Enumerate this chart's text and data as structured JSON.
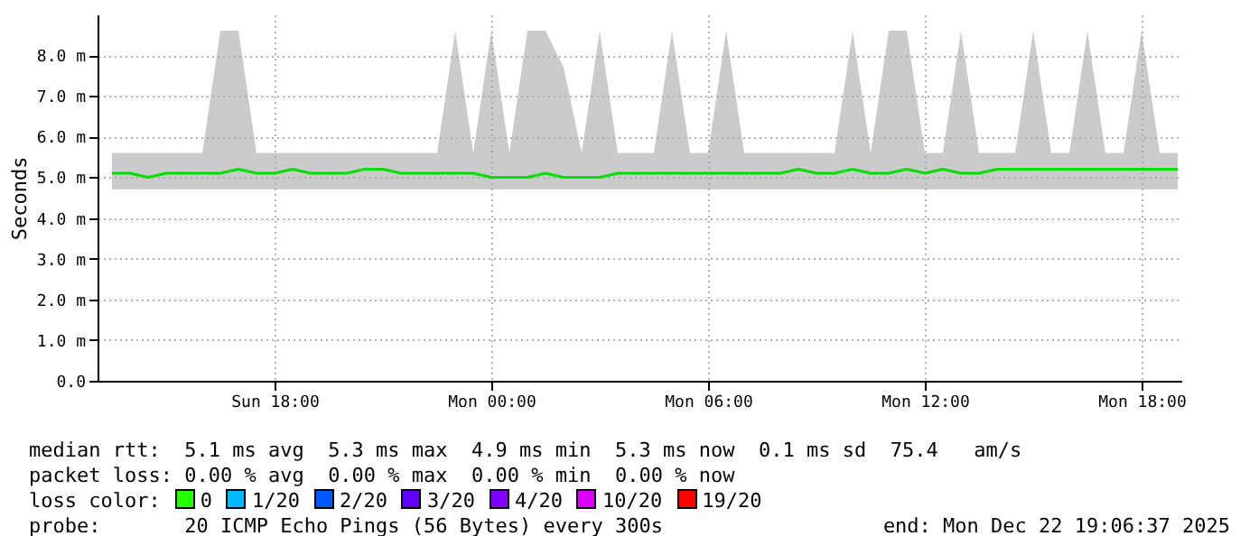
{
  "chart_data": {
    "type": "line",
    "ylabel": "Seconds",
    "x": [
      "2025-12-21T13:30",
      "2025-12-21T14:00",
      "2025-12-21T14:30",
      "2025-12-21T15:00",
      "2025-12-21T15:30",
      "2025-12-21T16:00",
      "2025-12-21T16:30",
      "2025-12-21T17:00",
      "2025-12-21T17:30",
      "2025-12-21T18:00",
      "2025-12-21T18:30",
      "2025-12-21T19:00",
      "2025-12-21T19:30",
      "2025-12-21T20:00",
      "2025-12-21T20:30",
      "2025-12-21T21:00",
      "2025-12-21T21:30",
      "2025-12-21T22:00",
      "2025-12-21T22:30",
      "2025-12-21T23:00",
      "2025-12-21T23:30",
      "2025-12-22T00:00",
      "2025-12-22T00:30",
      "2025-12-22T01:00",
      "2025-12-22T01:30",
      "2025-12-22T02:00",
      "2025-12-22T02:30",
      "2025-12-22T03:00",
      "2025-12-22T03:30",
      "2025-12-22T04:00",
      "2025-12-22T04:30",
      "2025-12-22T05:00",
      "2025-12-22T05:30",
      "2025-12-22T06:00",
      "2025-12-22T06:30",
      "2025-12-22T07:00",
      "2025-12-22T07:30",
      "2025-12-22T08:00",
      "2025-12-22T08:30",
      "2025-12-22T09:00",
      "2025-12-22T09:30",
      "2025-12-22T10:00",
      "2025-12-22T10:30",
      "2025-12-22T11:00",
      "2025-12-22T11:30",
      "2025-12-22T12:00",
      "2025-12-22T12:30",
      "2025-12-22T13:00",
      "2025-12-22T13:30",
      "2025-12-22T14:00",
      "2025-12-22T14:30",
      "2025-12-22T15:00",
      "2025-12-22T15:30",
      "2025-12-22T16:00",
      "2025-12-22T16:30",
      "2025-12-22T17:00",
      "2025-12-22T17:30",
      "2025-12-22T18:00",
      "2025-12-22T18:30",
      "2025-12-22T19:00"
    ],
    "series": [
      {
        "color": "#00e000",
        "values": [
          5.1,
          5.1,
          5.0,
          5.1,
          5.1,
          5.1,
          5.1,
          5.2,
          5.1,
          5.1,
          5.2,
          5.1,
          5.1,
          5.1,
          5.2,
          5.2,
          5.1,
          5.1,
          5.1,
          5.1,
          5.1,
          5.0,
          5.0,
          5.0,
          5.1,
          5.0,
          5.0,
          5.0,
          5.1,
          5.1,
          5.1,
          5.1,
          5.1,
          5.1,
          5.1,
          5.1,
          5.1,
          5.1,
          5.2,
          5.1,
          5.1,
          5.2,
          5.1,
          5.1,
          5.2,
          5.1,
          5.2,
          5.1,
          5.1,
          5.2,
          5.2,
          5.2,
          5.2,
          5.2,
          5.2,
          5.2,
          5.2,
          5.2,
          5.2,
          5.2
        ],
        "lower": [
          4.7,
          4.7,
          4.7,
          4.7,
          4.7,
          4.7,
          4.7,
          4.7,
          4.7,
          4.7,
          4.7,
          4.7,
          4.7,
          4.7,
          4.7,
          4.7,
          4.7,
          4.7,
          4.7,
          4.7,
          4.7,
          4.7,
          4.7,
          4.7,
          4.7,
          4.7,
          4.7,
          4.7,
          4.7,
          4.7,
          4.7,
          4.7,
          4.7,
          4.7,
          4.7,
          4.7,
          4.7,
          4.7,
          4.7,
          4.7,
          4.7,
          4.7,
          4.7,
          4.7,
          4.7,
          4.7,
          4.7,
          4.7,
          4.7,
          4.7,
          4.7,
          4.7,
          4.7,
          4.7,
          4.7,
          4.7,
          4.7,
          4.7,
          4.7,
          4.7
        ],
        "upper": [
          5.6,
          5.6,
          5.6,
          5.6,
          5.6,
          5.6,
          8.6,
          8.6,
          5.6,
          5.6,
          5.6,
          5.6,
          5.6,
          5.6,
          5.6,
          5.6,
          5.6,
          5.6,
          5.6,
          8.6,
          5.6,
          8.6,
          5.6,
          8.6,
          8.6,
          7.7,
          5.6,
          8.6,
          5.6,
          5.6,
          5.6,
          8.6,
          5.6,
          5.6,
          8.6,
          5.6,
          5.6,
          5.6,
          5.6,
          5.6,
          5.6,
          8.6,
          5.6,
          8.6,
          8.6,
          5.6,
          5.6,
          8.6,
          5.6,
          5.6,
          5.6,
          8.6,
          5.6,
          5.6,
          8.6,
          5.6,
          5.6,
          8.6,
          5.6,
          5.6
        ]
      }
    ],
    "xlim": [
      "2025-12-21T13:06",
      "2025-12-22T19:06"
    ],
    "xticks": [
      {
        "value": "2025-12-21T18:00",
        "label": "Sun 18:00"
      },
      {
        "value": "2025-12-22T00:00",
        "label": "Mon 00:00"
      },
      {
        "value": "2025-12-22T06:00",
        "label": "Mon 06:00"
      },
      {
        "value": "2025-12-22T12:00",
        "label": "Mon 12:00"
      },
      {
        "value": "2025-12-22T18:00",
        "label": "Mon 18:00"
      }
    ],
    "ylim": [
      0,
      9
    ],
    "yticks": [
      {
        "value": 0,
        "label": "0.0"
      },
      {
        "value": 1,
        "label": "1.0 m"
      },
      {
        "value": 2,
        "label": "2.0 m"
      },
      {
        "value": 3,
        "label": "3.0 m"
      },
      {
        "value": 4,
        "label": "4.0 m"
      },
      {
        "value": 5,
        "label": "5.0 m"
      },
      {
        "value": 6,
        "label": "6.0 m"
      },
      {
        "value": 7,
        "label": "7.0 m"
      },
      {
        "value": 8,
        "label": "8.0 m"
      }
    ],
    "grid": true,
    "marker": "none",
    "line_style": "solid",
    "annotations": [
      "median rtt:  5.1 ms avg  5.3 ms max  4.9 ms min  5.3 ms now  0.1 ms sd  75.4   am/s",
      "packet loss: 0.00 % avg  0.00 % max  0.00 % min  0.00 % now",
      "loss color:",
      "0",
      "1/20",
      "2/20",
      "3/20",
      "4/20",
      "10/20",
      "19/20",
      "probe:       20 ICMP Echo Pings (56 Bytes) every 300s",
      "end: Mon Dec 22 19:06:37 2025"
    ]
  }
}
